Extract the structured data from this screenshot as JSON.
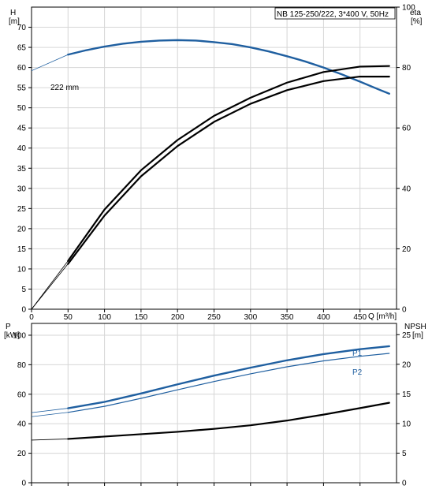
{
  "chart_data": [
    {
      "type": "line",
      "title": "NB 125-250/222, 3*400 V, 50Hz",
      "left_axis": {
        "label": "H",
        "unit": "[m]",
        "ylim": [
          0,
          75
        ],
        "ticks": [
          0,
          5,
          10,
          15,
          20,
          25,
          30,
          35,
          40,
          45,
          50,
          55,
          60,
          65,
          70
        ]
      },
      "right_axis": {
        "label": "eta",
        "unit": "[%]",
        "ylim": [
          0,
          100
        ],
        "ticks": [
          0,
          20,
          40,
          60,
          80,
          100
        ]
      },
      "x_axis": {
        "label": "Q [m³/h]",
        "xlim": [
          0,
          500
        ],
        "ticks": [
          0,
          50,
          100,
          150,
          200,
          250,
          300,
          350,
          400,
          450
        ]
      },
      "grid": true,
      "series": [
        {
          "name": "222 mm",
          "axis": "left",
          "color": "#1f5fa0",
          "extension": [
            [
              0,
              59.2
            ],
            [
              50,
              63.2
            ]
          ],
          "x": [
            50,
            75,
            100,
            125,
            150,
            175,
            200,
            225,
            250,
            275,
            300,
            325,
            350,
            375,
            400,
            425,
            450,
            475,
            490
          ],
          "y": [
            63.2,
            64.3,
            65.2,
            65.9,
            66.4,
            66.7,
            66.8,
            66.7,
            66.3,
            65.8,
            65.0,
            64.0,
            62.8,
            61.5,
            60.0,
            58.3,
            56.5,
            54.6,
            53.5
          ]
        },
        {
          "axis": "right",
          "color": "#000000",
          "extension": [
            [
              0,
              0
            ],
            [
              50,
              16
            ]
          ],
          "x": [
            50,
            100,
            150,
            200,
            250,
            300,
            350,
            400,
            450,
            490
          ],
          "y": [
            16,
            33,
            46,
            56,
            64,
            70,
            75,
            78.5,
            80.3,
            80.5
          ]
        },
        {
          "axis": "right",
          "color": "#000000",
          "extension": [
            [
              0,
              0
            ],
            [
              50,
              15
            ]
          ],
          "x": [
            50,
            100,
            150,
            200,
            250,
            300,
            350,
            400,
            450,
            490
          ],
          "y": [
            15,
            31,
            44,
            54,
            62,
            68,
            72.5,
            75.5,
            77,
            77
          ]
        }
      ]
    },
    {
      "type": "line",
      "left_axis": {
        "label": "P",
        "unit": "[kW]",
        "ylim": [
          0,
          108
        ],
        "ticks": [
          0,
          20,
          40,
          60,
          80,
          100
        ]
      },
      "right_axis": {
        "label": "NPSH",
        "unit": "[m]",
        "ylim": [
          0,
          26.9
        ],
        "ticks": [
          0,
          5,
          10,
          15,
          20,
          25
        ]
      },
      "xlim": [
        0,
        500
      ],
      "grid": true,
      "series": [
        {
          "name": "P1",
          "axis": "left",
          "color": "#1f5fa0",
          "extension": [
            [
              0,
              47.5
            ],
            [
              50,
              50.5
            ]
          ],
          "x": [
            50,
            100,
            150,
            200,
            250,
            300,
            350,
            400,
            450,
            490
          ],
          "y": [
            50.5,
            54.8,
            60.5,
            66.7,
            72.6,
            78.0,
            83.0,
            87.2,
            90.5,
            92.5
          ]
        },
        {
          "name": "P2",
          "axis": "left",
          "color": "#1f5fa0",
          "extension": [
            [
              0,
              44.8
            ],
            [
              50,
              47.7
            ]
          ],
          "x": [
            50,
            100,
            150,
            200,
            250,
            300,
            350,
            400,
            450,
            490
          ],
          "y": [
            47.7,
            51.8,
            57.2,
            63.0,
            68.6,
            73.8,
            78.6,
            82.6,
            85.7,
            87.7
          ]
        },
        {
          "axis": "right",
          "color": "#000000",
          "extension": [
            [
              0,
              7.2
            ],
            [
              50,
              7.4
            ]
          ],
          "x": [
            50,
            100,
            150,
            200,
            250,
            300,
            350,
            400,
            450,
            490
          ],
          "y": [
            7.4,
            7.8,
            8.2,
            8.6,
            9.1,
            9.7,
            10.5,
            11.5,
            12.6,
            13.5
          ]
        }
      ]
    }
  ]
}
